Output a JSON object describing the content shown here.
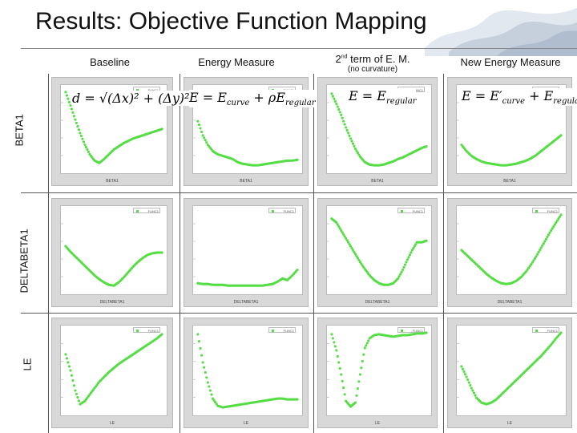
{
  "title": "Results: Objective Function Mapping",
  "columns": {
    "baseline": "Baseline",
    "energy": "Energy Measure",
    "second_sup": "nd",
    "second_num": "2",
    "second_rest": " term of E. M.",
    "second_sub": "(no curvature)",
    "new_energy": "New Energy Measure"
  },
  "rows": {
    "beta1": "BETA1",
    "deltabeta1": "DELTABETA1",
    "le": "LE"
  },
  "equations": {
    "baseline": {
      "lhs": "d",
      "rhs": "= √(Δx)² + (Δy)²"
    },
    "energy": {
      "lhs": "E",
      "rhs_a": "= E",
      "sub_a": "curve",
      "rhs_b": " + ρE",
      "sub_b": "regular"
    },
    "second": {
      "lhs": "E",
      "rhs_a": "= E",
      "sub_a": "regular"
    },
    "new": {
      "lhs": "E",
      "rhs_a": "= E′",
      "sub_a": "curve",
      "rhs_b": " + E",
      "sub_b": "regular"
    }
  },
  "legend_text": "FUNC1",
  "axis_labels": {
    "beta1": "BETA1",
    "deltabeta1": "DELTABETA1",
    "le": "LE"
  },
  "chart_data": [
    {
      "type": "scatter",
      "row": "BETA1",
      "column": "Baseline",
      "x": [
        0,
        1,
        2,
        3,
        4,
        5,
        6,
        7,
        8,
        9,
        10,
        11,
        12,
        13,
        14,
        15,
        16,
        17,
        18,
        19,
        20
      ],
      "y": [
        0.97,
        0.8,
        0.62,
        0.45,
        0.3,
        0.18,
        0.1,
        0.07,
        0.12,
        0.18,
        0.24,
        0.28,
        0.32,
        0.35,
        0.38,
        0.4,
        0.42,
        0.44,
        0.46,
        0.48,
        0.5
      ],
      "ylim": [
        0,
        1
      ],
      "title": "",
      "xlabel": "BETA1",
      "ylabel": ""
    },
    {
      "type": "scatter",
      "row": "BETA1",
      "column": "Energy Measure",
      "x": [
        0,
        1,
        2,
        3,
        4,
        5,
        6,
        7,
        8,
        9,
        10,
        11,
        12,
        13,
        14,
        15,
        16,
        17,
        18,
        19,
        20
      ],
      "y": [
        0.6,
        0.42,
        0.3,
        0.22,
        0.18,
        0.16,
        0.14,
        0.12,
        0.08,
        0.06,
        0.05,
        0.04,
        0.04,
        0.05,
        0.06,
        0.07,
        0.08,
        0.09,
        0.1,
        0.1,
        0.11
      ],
      "ylim": [
        0,
        1
      ],
      "title": "",
      "xlabel": "BETA1",
      "ylabel": ""
    },
    {
      "type": "scatter",
      "row": "BETA1",
      "column": "2nd term of E. M.",
      "x": [
        0,
        1,
        2,
        3,
        4,
        5,
        6,
        7,
        8,
        9,
        10,
        11,
        12,
        13,
        14,
        15,
        16,
        17,
        18,
        19,
        20
      ],
      "y": [
        0.95,
        0.82,
        0.68,
        0.52,
        0.38,
        0.25,
        0.15,
        0.08,
        0.05,
        0.04,
        0.04,
        0.05,
        0.07,
        0.09,
        0.12,
        0.14,
        0.17,
        0.2,
        0.23,
        0.26,
        0.28
      ],
      "ylim": [
        0,
        1
      ],
      "title": "",
      "xlabel": "BETA1",
      "ylabel": ""
    },
    {
      "type": "scatter",
      "row": "BETA1",
      "column": "New Energy Measure",
      "x": [
        0,
        1,
        2,
        3,
        4,
        5,
        6,
        7,
        8,
        9,
        10,
        11,
        12,
        13,
        14,
        15,
        16,
        17,
        18,
        19,
        20
      ],
      "y": [
        0.3,
        0.22,
        0.16,
        0.12,
        0.09,
        0.07,
        0.06,
        0.05,
        0.04,
        0.04,
        0.05,
        0.06,
        0.08,
        0.1,
        0.13,
        0.17,
        0.22,
        0.27,
        0.32,
        0.37,
        0.42
      ],
      "ylim": [
        0,
        1
      ],
      "title": "",
      "xlabel": "BETA1",
      "ylabel": ""
    },
    {
      "type": "scatter",
      "row": "DELTABETA1",
      "column": "Baseline",
      "x": [
        0,
        1,
        2,
        3,
        4,
        5,
        6,
        7,
        8,
        9,
        10,
        11,
        12,
        13,
        14,
        15,
        16,
        17,
        18,
        19,
        20
      ],
      "y": [
        0.55,
        0.48,
        0.42,
        0.36,
        0.3,
        0.24,
        0.18,
        0.13,
        0.09,
        0.06,
        0.05,
        0.09,
        0.15,
        0.22,
        0.29,
        0.35,
        0.4,
        0.44,
        0.46,
        0.47,
        0.47
      ],
      "ylim": [
        0,
        1
      ],
      "title": "",
      "xlabel": "DELTABETA1",
      "ylabel": ""
    },
    {
      "type": "scatter",
      "row": "DELTABETA1",
      "column": "Energy Measure",
      "x": [
        0,
        1,
        2,
        3,
        4,
        5,
        6,
        7,
        8,
        9,
        10,
        11,
        12,
        13,
        14,
        15,
        16,
        17,
        18,
        19,
        20
      ],
      "y": [
        0.08,
        0.07,
        0.07,
        0.06,
        0.06,
        0.06,
        0.05,
        0.05,
        0.05,
        0.05,
        0.05,
        0.05,
        0.05,
        0.05,
        0.06,
        0.07,
        0.1,
        0.14,
        0.12,
        0.18,
        0.25
      ],
      "ylim": [
        0,
        1
      ],
      "title": "",
      "xlabel": "DELTABETA1",
      "ylabel": ""
    },
    {
      "type": "scatter",
      "row": "DELTABETA1",
      "column": "2nd term of E. M.",
      "x": [
        0,
        1,
        2,
        3,
        4,
        5,
        6,
        7,
        8,
        9,
        10,
        11,
        12,
        13,
        14,
        15,
        16,
        17,
        18,
        19,
        20
      ],
      "y": [
        0.9,
        0.85,
        0.75,
        0.65,
        0.55,
        0.45,
        0.35,
        0.26,
        0.18,
        0.12,
        0.08,
        0.06,
        0.06,
        0.08,
        0.14,
        0.25,
        0.38,
        0.5,
        0.6,
        0.6,
        0.62
      ],
      "ylim": [
        0,
        1
      ],
      "title": "",
      "xlabel": "DELTABETA1",
      "ylabel": ""
    },
    {
      "type": "scatter",
      "row": "DELTABETA1",
      "column": "New Energy Measure",
      "x": [
        0,
        1,
        2,
        3,
        4,
        5,
        6,
        7,
        8,
        9,
        10,
        11,
        12,
        13,
        14,
        15,
        16,
        17,
        18,
        19,
        20
      ],
      "y": [
        0.5,
        0.44,
        0.38,
        0.32,
        0.26,
        0.2,
        0.15,
        0.11,
        0.08,
        0.07,
        0.08,
        0.11,
        0.16,
        0.23,
        0.32,
        0.42,
        0.53,
        0.64,
        0.75,
        0.85,
        0.95
      ],
      "ylim": [
        0,
        1
      ],
      "title": "",
      "xlabel": "DELTABETA1",
      "ylabel": ""
    },
    {
      "type": "scatter",
      "row": "LE",
      "column": "Baseline",
      "x": [
        0,
        1,
        2,
        3,
        4,
        5,
        6,
        7,
        8,
        9,
        10,
        11,
        12,
        13,
        14,
        15,
        16,
        17,
        18,
        19,
        20
      ],
      "y": [
        0.7,
        0.5,
        0.25,
        0.08,
        0.12,
        0.2,
        0.28,
        0.36,
        0.42,
        0.48,
        0.53,
        0.58,
        0.62,
        0.66,
        0.7,
        0.74,
        0.78,
        0.82,
        0.86,
        0.9,
        0.95
      ],
      "ylim": [
        0,
        1
      ],
      "title": "",
      "xlabel": "LE",
      "ylabel": ""
    },
    {
      "type": "scatter",
      "row": "LE",
      "column": "Energy Measure",
      "x": [
        0,
        1,
        2,
        3,
        4,
        5,
        6,
        7,
        8,
        9,
        10,
        11,
        12,
        13,
        14,
        15,
        16,
        17,
        18,
        19,
        20
      ],
      "y": [
        0.95,
        0.6,
        0.35,
        0.15,
        0.06,
        0.04,
        0.05,
        0.06,
        0.07,
        0.08,
        0.09,
        0.1,
        0.11,
        0.12,
        0.13,
        0.14,
        0.15,
        0.15,
        0.14,
        0.14,
        0.14
      ],
      "ylim": [
        0,
        1
      ],
      "title": "",
      "xlabel": "LE",
      "ylabel": ""
    },
    {
      "type": "scatter",
      "row": "LE",
      "column": "2nd term of E. M.",
      "x": [
        0,
        1,
        2,
        3,
        4,
        5,
        6,
        7,
        8,
        9,
        10,
        11,
        12,
        13,
        14,
        15,
        16,
        17,
        18,
        19,
        20
      ],
      "y": [
        0.95,
        0.75,
        0.45,
        0.12,
        0.05,
        0.1,
        0.45,
        0.78,
        0.9,
        0.94,
        0.95,
        0.94,
        0.93,
        0.92,
        0.93,
        0.94,
        0.94,
        0.95,
        0.96,
        0.96,
        0.97
      ],
      "ylim": [
        0,
        1
      ],
      "title": "",
      "xlabel": "LE",
      "ylabel": ""
    },
    {
      "type": "scatter",
      "row": "LE",
      "column": "New Energy Measure",
      "x": [
        0,
        1,
        2,
        3,
        4,
        5,
        6,
        7,
        8,
        9,
        10,
        11,
        12,
        13,
        14,
        15,
        16,
        17,
        18,
        19,
        20
      ],
      "y": [
        0.55,
        0.42,
        0.28,
        0.16,
        0.1,
        0.08,
        0.1,
        0.14,
        0.2,
        0.26,
        0.32,
        0.38,
        0.44,
        0.5,
        0.56,
        0.62,
        0.68,
        0.75,
        0.82,
        0.9,
        0.97
      ],
      "ylim": [
        0,
        1
      ],
      "title": "",
      "xlabel": "LE",
      "ylabel": ""
    }
  ]
}
